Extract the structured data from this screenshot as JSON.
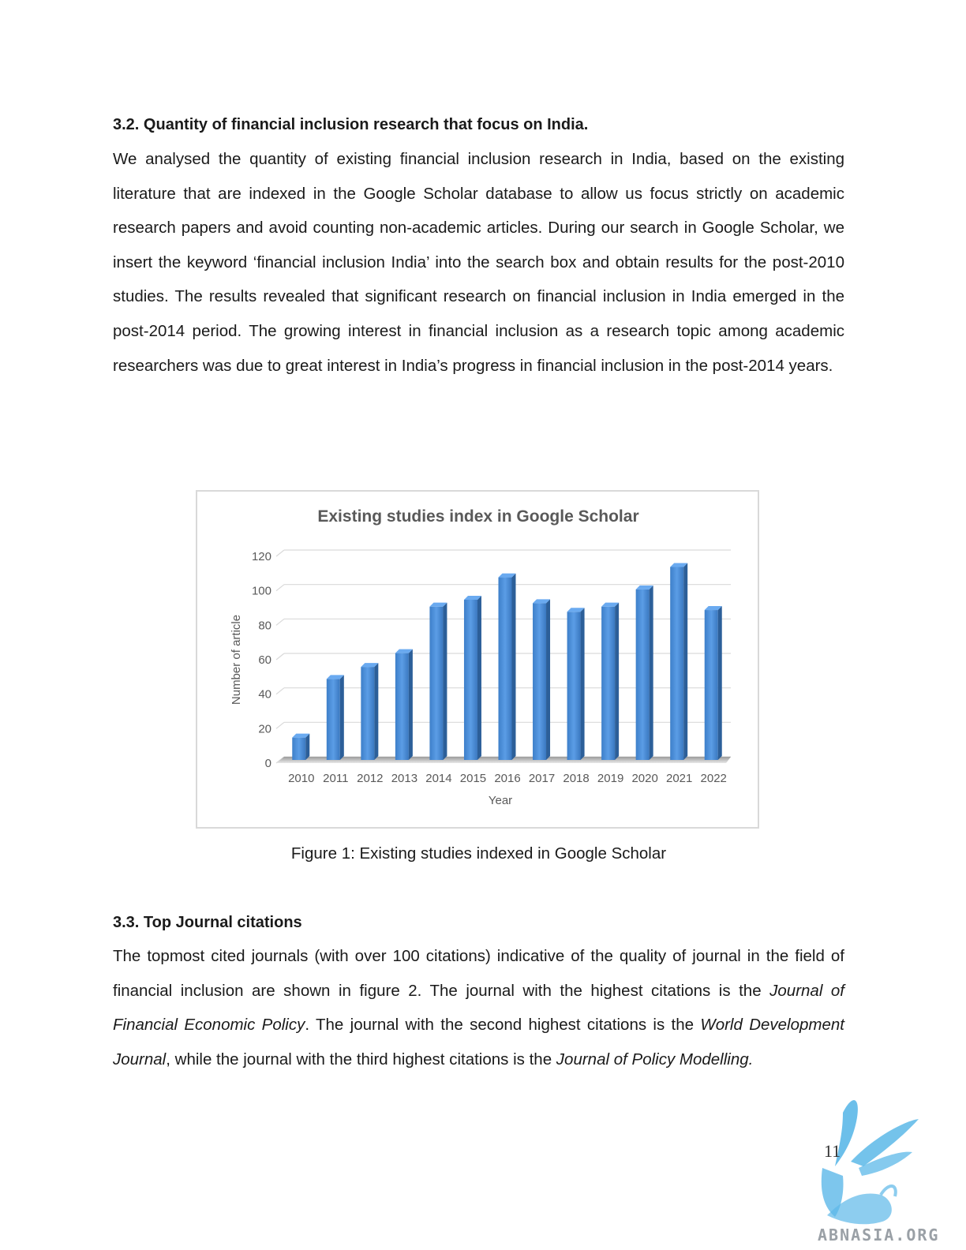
{
  "section_3_2": {
    "heading": "3.2. Quantity of financial inclusion research that focus on India.",
    "paragraph": "We analysed the quantity of existing financial inclusion research in India, based on the existing literature that are indexed in the Google Scholar database to allow us focus strictly on academic research papers and avoid counting non-academic articles. During our search in Google Scholar, we insert the keyword ‘financial inclusion India’ into the search box and obtain results for the post-2010 studies. The results revealed that significant research on financial inclusion in India emerged in the post-2014 period. The growing interest in financial inclusion as a research topic among academic researchers was due to great interest in India’s progress in financial inclusion in the post-2014 years."
  },
  "figure": {
    "caption": "Figure 1: Existing studies indexed in Google Scholar"
  },
  "chart_data": {
    "type": "bar",
    "title": "Existing studies index in Google Scholar",
    "xlabel": "Year",
    "ylabel": "Number of article",
    "categories": [
      "2010",
      "2011",
      "2012",
      "2013",
      "2014",
      "2015",
      "2016",
      "2017",
      "2018",
      "2019",
      "2020",
      "2021",
      "2022"
    ],
    "values": [
      13,
      47,
      54,
      62,
      89,
      93,
      106,
      91,
      86,
      89,
      99,
      112,
      87
    ],
    "ylim": [
      0,
      120
    ],
    "yticks": [
      0,
      20,
      40,
      60,
      80,
      100,
      120
    ],
    "grid": true,
    "legend": "none",
    "bar_color": "#4a8fd8"
  },
  "section_3_3": {
    "heading": "3.3. Top Journal citations",
    "p_text_1": "The topmost cited journals (with over 100 citations) indicative of the quality of journal in the field of financial inclusion are shown in figure 2. The journal with the highest citations is the ",
    "p_italic_1": "Journal of Financial Economic Policy",
    "p_text_2": ". The journal with the second highest citations is the ",
    "p_italic_2": "World Development Journal",
    "p_text_3": ", while the journal with the third highest citations is the ",
    "p_italic_3": "Journal of Policy Modelling."
  },
  "page_number": "11",
  "watermark": {
    "text": "ABNASIA.ORG",
    "icon": "feather-lion-logo-icon",
    "color": "#5cb8e8"
  }
}
